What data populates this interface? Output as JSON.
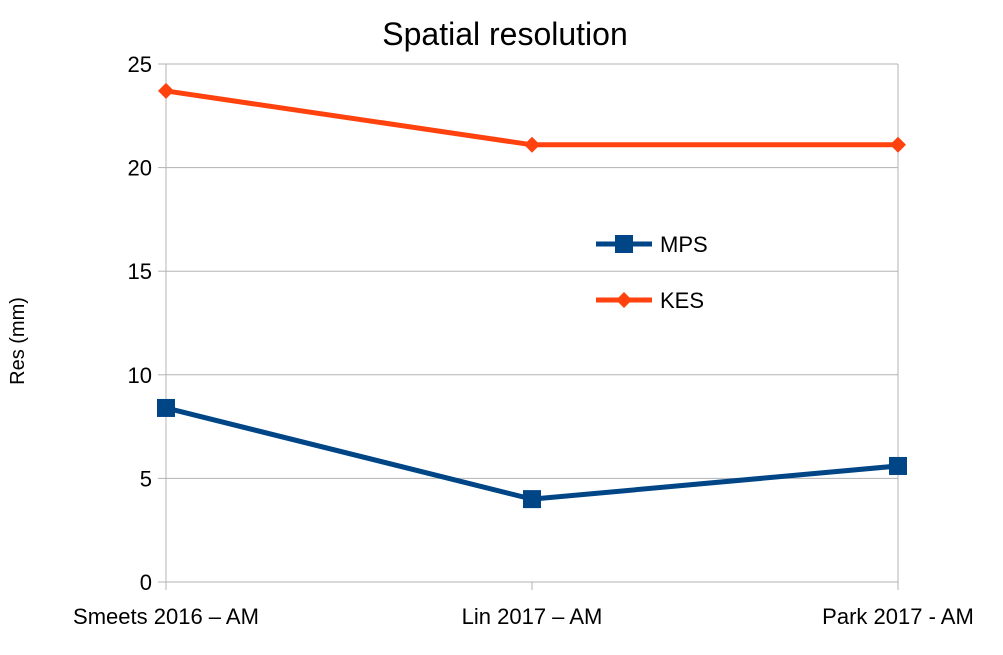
{
  "chart_data": {
    "type": "line",
    "title": "Spatial resolution",
    "xlabel": "",
    "ylabel": "Res (mm)",
    "categories": [
      "Smeets 2016 – AM",
      "Lin 2017 – AM",
      "Park 2017 - AM"
    ],
    "ylim": [
      0,
      25
    ],
    "yticks": [
      0,
      5,
      10,
      15,
      20,
      25
    ],
    "grid": true,
    "legend_position": "center-right",
    "series": [
      {
        "name": "MPS",
        "values": [
          8.4,
          4.0,
          5.6
        ],
        "color": "#004586",
        "marker": "square"
      },
      {
        "name": "KES",
        "values": [
          23.7,
          21.1,
          21.1
        ],
        "color": "#ff420e",
        "marker": "diamond"
      }
    ]
  }
}
